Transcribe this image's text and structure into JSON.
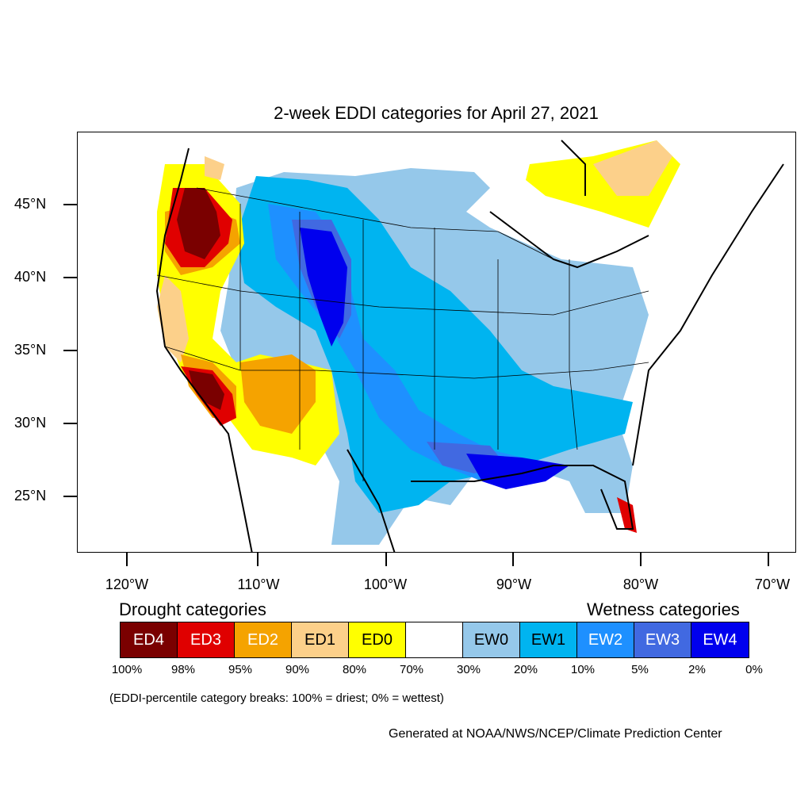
{
  "title": "2-week EDDI categories for April 27, 2021",
  "lat_labels": [
    "45°N",
    "40°N",
    "35°N",
    "30°N",
    "25°N"
  ],
  "lon_labels": [
    "120°W",
    "110°W",
    "100°W",
    "90°W",
    "80°W",
    "70°W"
  ],
  "legend": {
    "drought_heading": "Drought categories",
    "wetness_heading": "Wetness categories",
    "categories": [
      {
        "label": "ED4",
        "color": "#7a0000"
      },
      {
        "label": "ED3",
        "color": "#e00000"
      },
      {
        "label": "ED2",
        "color": "#f5a300"
      },
      {
        "label": "ED1",
        "color": "#fcd08a"
      },
      {
        "label": "ED0",
        "color": "#ffff00"
      },
      {
        "label": "",
        "color": "#ffffff"
      },
      {
        "label": "EW0",
        "color": "#95c8ea"
      },
      {
        "label": "EW1",
        "color": "#00b4f0"
      },
      {
        "label": "EW2",
        "color": "#1e90ff"
      },
      {
        "label": "EW3",
        "color": "#4169e1"
      },
      {
        "label": "EW4",
        "color": "#0000ee"
      }
    ],
    "breaks": [
      "100%",
      "98%",
      "95%",
      "90%",
      "80%",
      "70%",
      "30%",
      "20%",
      "10%",
      "5%",
      "2%",
      "0%"
    ]
  },
  "note": "(EDDI-percentile category breaks: 100% = driest; 0% = wettest)",
  "credit": "Generated at NOAA/NWS/NCEP/Climate Prediction Center"
}
